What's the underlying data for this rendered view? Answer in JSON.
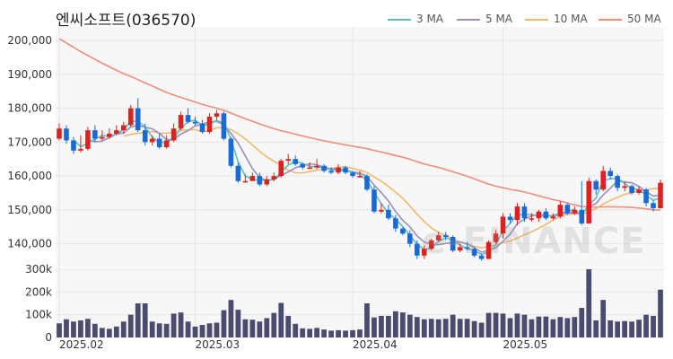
{
  "chart_data": {
    "type": "candlestick",
    "title": "엔씨소프트(036570)",
    "watermark": "e-FINANCE",
    "x_tick_labels": [
      "2025.02",
      "2025.03",
      "2025.04",
      "2025.05"
    ],
    "price_axis": {
      "ticks": [
        "200,000",
        "190,000",
        "180,000",
        "170,000",
        "160,000",
        "150,000",
        "140,000"
      ],
      "ylim": [
        133000,
        204000
      ]
    },
    "volume_axis": {
      "ticks": [
        "300k",
        "200k",
        "100k",
        "0"
      ],
      "ylim": [
        0,
        300000
      ]
    },
    "legend": [
      {
        "name": "3 MA",
        "color": "#5bc0c4"
      },
      {
        "name": "5 MA",
        "color": "#9b8fc0"
      },
      {
        "name": "10 MA",
        "color": "#f2b870"
      },
      {
        "name": "50 MA",
        "color": "#f08c78"
      }
    ],
    "colors": {
      "up": "#e02020",
      "down": "#1a6ad6",
      "volume": "#4a4b6e"
    },
    "candles": [
      [
        171000,
        174000,
        175500,
        170500,
        62000
      ],
      [
        174000,
        170500,
        175000,
        169500,
        80000
      ],
      [
        170500,
        167500,
        171500,
        166500,
        70000
      ],
      [
        167500,
        168000,
        172000,
        167000,
        75000
      ],
      [
        168000,
        173500,
        174500,
        167500,
        82000
      ],
      [
        173500,
        171000,
        175000,
        170000,
        60000
      ],
      [
        171000,
        171500,
        173500,
        170500,
        42000
      ],
      [
        171500,
        172500,
        174000,
        171000,
        38000
      ],
      [
        172500,
        173500,
        175000,
        172000,
        48000
      ],
      [
        173500,
        175000,
        176000,
        172500,
        70000
      ],
      [
        175000,
        180000,
        181000,
        174500,
        100000
      ],
      [
        180000,
        173500,
        183000,
        173000,
        150000
      ],
      [
        173500,
        170000,
        175500,
        169000,
        150000
      ],
      [
        170000,
        171000,
        172000,
        169000,
        70000
      ],
      [
        171000,
        168500,
        172500,
        168000,
        62000
      ],
      [
        168500,
        170500,
        172000,
        168000,
        60000
      ],
      [
        170500,
        174000,
        175500,
        170000,
        105000
      ],
      [
        174000,
        178000,
        179000,
        173500,
        110000
      ],
      [
        178000,
        176000,
        180000,
        175500,
        70000
      ],
      [
        176000,
        175500,
        177500,
        175000,
        48000
      ],
      [
        175500,
        173000,
        176500,
        172500,
        55000
      ],
      [
        173000,
        177500,
        178500,
        172500,
        62000
      ],
      [
        177500,
        178500,
        179500,
        176500,
        65000
      ],
      [
        178500,
        171000,
        179000,
        170500,
        120000
      ],
      [
        171000,
        163000,
        171500,
        162500,
        165000
      ],
      [
        163000,
        158500,
        164000,
        158000,
        122000
      ],
      [
        158500,
        158500,
        160500,
        158000,
        80000
      ],
      [
        158500,
        160000,
        161000,
        158500,
        78000
      ],
      [
        160000,
        157500,
        161000,
        157000,
        70000
      ],
      [
        157500,
        159000,
        160000,
        157000,
        85000
      ],
      [
        159000,
        160000,
        161000,
        158500,
        108000
      ],
      [
        160000,
        164500,
        165000,
        159500,
        152000
      ],
      [
        164500,
        165000,
        166500,
        163500,
        95000
      ],
      [
        165000,
        163500,
        166000,
        163000,
        60000
      ],
      [
        163500,
        162500,
        164000,
        162000,
        40000
      ],
      [
        162500,
        162500,
        164000,
        162000,
        38000
      ],
      [
        162500,
        163000,
        165000,
        162000,
        42000
      ],
      [
        163000,
        161500,
        163500,
        161000,
        35000
      ],
      [
        161500,
        161000,
        162500,
        160500,
        30000
      ],
      [
        161000,
        162500,
        163500,
        160500,
        32000
      ],
      [
        162500,
        161000,
        163000,
        160500,
        30000
      ],
      [
        161000,
        160000,
        161500,
        159500,
        32000
      ],
      [
        160000,
        160000,
        161500,
        159500,
        35000
      ],
      [
        160000,
        156000,
        160500,
        155500,
        150000
      ],
      [
        156000,
        149500,
        157000,
        149000,
        88000
      ],
      [
        149500,
        150000,
        152000,
        149000,
        95000
      ],
      [
        150000,
        147500,
        151500,
        147000,
        95000
      ],
      [
        147500,
        144500,
        148500,
        143500,
        115000
      ],
      [
        144500,
        143000,
        145000,
        142500,
        110000
      ],
      [
        143000,
        140000,
        144000,
        139000,
        100000
      ],
      [
        140000,
        136500,
        141000,
        135500,
        90000
      ],
      [
        136500,
        138500,
        139500,
        135500,
        80000
      ],
      [
        138500,
        141000,
        141500,
        138000,
        82000
      ],
      [
        141000,
        142500,
        143500,
        140500,
        80000
      ],
      [
        142500,
        142000,
        143500,
        141000,
        82000
      ],
      [
        142000,
        138000,
        142500,
        137500,
        100000
      ],
      [
        138000,
        139000,
        140000,
        137500,
        82000
      ],
      [
        139000,
        138500,
        140500,
        138000,
        82000
      ],
      [
        138500,
        136500,
        139000,
        136000,
        72000
      ],
      [
        136500,
        135500,
        137000,
        135000,
        65000
      ],
      [
        135500,
        140500,
        141000,
        135500,
        108000
      ],
      [
        140500,
        143000,
        144000,
        140000,
        108000
      ],
      [
        143000,
        148000,
        149000,
        141500,
        105000
      ],
      [
        148000,
        147000,
        149000,
        146000,
        85000
      ],
      [
        147000,
        151000,
        152000,
        145500,
        105000
      ],
      [
        151000,
        147500,
        152000,
        146500,
        100000
      ],
      [
        147500,
        147500,
        149000,
        146500,
        80000
      ],
      [
        147500,
        149500,
        150000,
        146500,
        92000
      ],
      [
        149500,
        147500,
        150500,
        147000,
        92000
      ],
      [
        147500,
        148000,
        149000,
        147000,
        80000
      ],
      [
        148000,
        151500,
        152500,
        147500,
        90000
      ],
      [
        151500,
        149000,
        152000,
        148500,
        85000
      ],
      [
        149000,
        150000,
        151000,
        148500,
        90000
      ],
      [
        150000,
        146000,
        158500,
        145500,
        130000
      ],
      [
        146000,
        158500,
        159500,
        146000,
        300000
      ],
      [
        158500,
        156000,
        159000,
        154500,
        75000
      ],
      [
        156000,
        161500,
        163000,
        155500,
        165000
      ],
      [
        161500,
        160000,
        162500,
        159000,
        75000
      ],
      [
        160000,
        156500,
        160500,
        155500,
        70000
      ],
      [
        156500,
        157000,
        158500,
        155500,
        72000
      ],
      [
        157000,
        155000,
        157500,
        154500,
        70000
      ],
      [
        155000,
        156000,
        157000,
        154500,
        78000
      ],
      [
        156000,
        152000,
        156500,
        151000,
        100000
      ],
      [
        152000,
        150500,
        153000,
        149500,
        95000
      ],
      [
        150500,
        158000,
        159000,
        150500,
        210000
      ]
    ]
  }
}
